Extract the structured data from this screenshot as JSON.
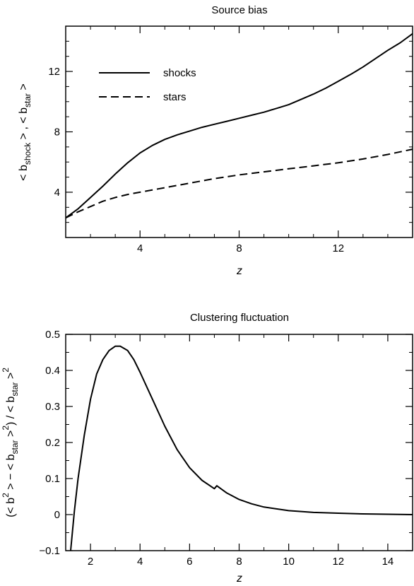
{
  "chart_data": [
    {
      "type": "line",
      "title": "Source bias",
      "xlabel": "z",
      "ylabel": {
        "open": "< b",
        "sub1": "shock",
        "mid": " > , < b",
        "sub2": "star",
        "close": " >"
      },
      "xlim": [
        1,
        15
      ],
      "ylim": [
        1,
        15
      ],
      "xticks": [
        "4",
        "8",
        "12"
      ],
      "xtick_values": [
        4,
        8,
        12
      ],
      "yticks": [
        "4",
        "8",
        "12"
      ],
      "ytick_values": [
        4,
        8,
        12
      ],
      "legend": "upper-left",
      "series": [
        {
          "name": "shocks",
          "style": "solid",
          "x": [
            1.0,
            1.5,
            2.0,
            2.5,
            3.0,
            3.5,
            4.0,
            4.5,
            5.0,
            5.5,
            6.0,
            6.5,
            7.0,
            7.5,
            8.0,
            8.5,
            9.0,
            9.5,
            10.0,
            10.5,
            11.0,
            11.5,
            12.0,
            12.5,
            13.0,
            13.5,
            14.0,
            14.5,
            15.0
          ],
          "y": [
            2.3,
            2.9,
            3.65,
            4.4,
            5.2,
            5.95,
            6.6,
            7.1,
            7.5,
            7.8,
            8.05,
            8.3,
            8.5,
            8.7,
            8.9,
            9.1,
            9.3,
            9.55,
            9.8,
            10.15,
            10.5,
            10.9,
            11.35,
            11.8,
            12.3,
            12.85,
            13.4,
            13.9,
            14.5
          ]
        },
        {
          "name": "stars",
          "style": "dashed",
          "x": [
            1.0,
            1.5,
            2.0,
            2.5,
            3.0,
            3.5,
            4.0,
            5.0,
            6.0,
            7.0,
            8.0,
            9.0,
            10.0,
            11.0,
            12.0,
            13.0,
            14.0,
            15.0
          ],
          "y": [
            2.3,
            2.7,
            3.05,
            3.4,
            3.65,
            3.85,
            4.0,
            4.3,
            4.6,
            4.9,
            5.15,
            5.35,
            5.55,
            5.75,
            5.95,
            6.2,
            6.5,
            6.85
          ]
        }
      ]
    },
    {
      "type": "line",
      "title": "Clustering fluctuation",
      "xlabel": "z",
      "ylabel": {
        "open": "(< b",
        "sup1": "2",
        "mid1": " > − < b",
        "sub1": "star",
        "mid2": " >",
        "sup2": "2",
        "mid3": ") / < b",
        "sub2": "star",
        "mid4": " >",
        "sup3": "2"
      },
      "xlim": [
        1,
        15
      ],
      "ylim": [
        -0.1,
        0.5
      ],
      "xticks": [
        "2",
        "4",
        "6",
        "8",
        "10",
        "12",
        "14"
      ],
      "xtick_values": [
        2,
        4,
        6,
        8,
        10,
        12,
        14
      ],
      "yticks": [
        "−0.1",
        "0",
        "0.1",
        "0.2",
        "0.3",
        "0.4",
        "0.5"
      ],
      "ytick_values": [
        -0.1,
        0,
        0.1,
        0.2,
        0.3,
        0.4,
        0.5
      ],
      "series": [
        {
          "style": "solid",
          "x": [
            1.2,
            1.35,
            1.5,
            1.75,
            2.0,
            2.25,
            2.5,
            2.75,
            3.0,
            3.2,
            3.5,
            3.75,
            4.0,
            4.5,
            5.0,
            5.5,
            6.0,
            6.5,
            7.0,
            7.1,
            7.5,
            8.0,
            8.5,
            9.0,
            10.0,
            11.0,
            12.0,
            13.0,
            14.0,
            15.0
          ],
          "y": [
            -0.1,
            0.01,
            0.1,
            0.22,
            0.32,
            0.39,
            0.43,
            0.455,
            0.467,
            0.467,
            0.455,
            0.43,
            0.395,
            0.32,
            0.245,
            0.18,
            0.13,
            0.095,
            0.072,
            0.08,
            0.06,
            0.042,
            0.03,
            0.021,
            0.011,
            0.006,
            0.004,
            0.002,
            0.001,
            0.0
          ]
        }
      ]
    }
  ]
}
